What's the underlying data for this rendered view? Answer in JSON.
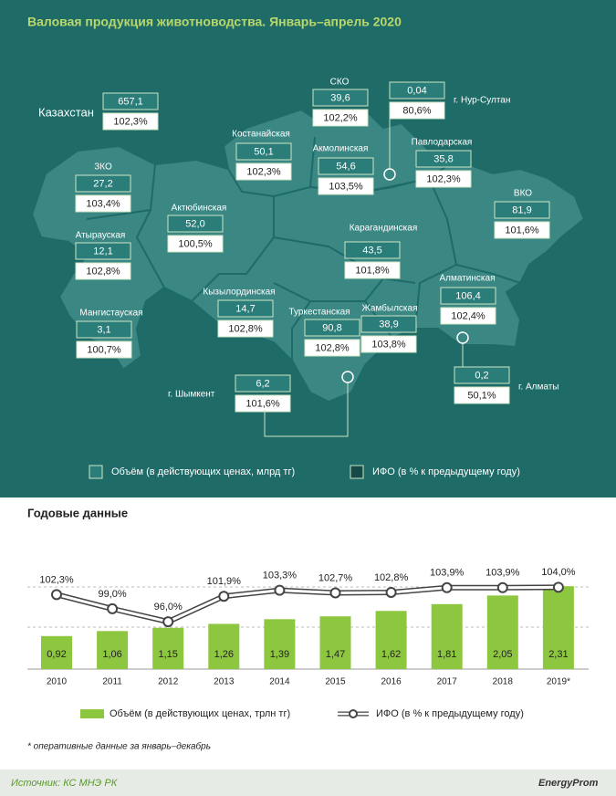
{
  "title": "Валовая продукция животноводства. Январь–апрель 2020",
  "map": {
    "regions": [
      {
        "name": "Казахстан",
        "volume": "657,1",
        "ifo": "102,3%"
      },
      {
        "name": "СКО",
        "volume": "39,6",
        "ifo": "102,2%"
      },
      {
        "name": "г. Нур-Султан",
        "volume": "0,04",
        "ifo": "80,6%"
      },
      {
        "name": "Костанайская",
        "volume": "50,1",
        "ifo": "102,3%"
      },
      {
        "name": "Акмолинская",
        "volume": "54,6",
        "ifo": "103,5%"
      },
      {
        "name": "Павлодарская",
        "volume": "35,8",
        "ifo": "102,3%"
      },
      {
        "name": "ЗКО",
        "volume": "27,2",
        "ifo": "103,4%"
      },
      {
        "name": "Актюбинская",
        "volume": "52,0",
        "ifo": "100,5%"
      },
      {
        "name": "ВКО",
        "volume": "81,9",
        "ifo": "101,6%"
      },
      {
        "name": "Атырауская",
        "volume": "12,1",
        "ifo": "102,8%"
      },
      {
        "name": "Карагандинская",
        "volume": "43,5",
        "ifo": "101,8%"
      },
      {
        "name": "Кызылординская",
        "volume": "14,7",
        "ifo": "102,8%"
      },
      {
        "name": "Алматинская",
        "volume": "106,4",
        "ifo": "102,4%"
      },
      {
        "name": "Мангистауская",
        "volume": "3,1",
        "ifo": "100,7%"
      },
      {
        "name": "Туркестанская",
        "volume": "90,8",
        "ifo": "102,8%"
      },
      {
        "name": "Жамбылская",
        "volume": "38,9",
        "ifo": "103,8%"
      },
      {
        "name": "г. Шымкент",
        "volume": "6,2",
        "ifo": "101,6%"
      },
      {
        "name": "г. Алматы",
        "volume": "0,2",
        "ifo": "50,1%"
      }
    ],
    "legend": {
      "volume": "Объём (в действующих ценах, млрд тг)",
      "ifo": "ИФО (в % к предыдущему году)"
    }
  },
  "chart_data": {
    "type": "bar_line",
    "title": "Годовые данные",
    "categories": [
      "2010",
      "2011",
      "2012",
      "2013",
      "2014",
      "2015",
      "2016",
      "2017",
      "2018",
      "2019*"
    ],
    "series": [
      {
        "name": "Объём (в действующих ценах, трлн тг)",
        "color": "#8dc63f",
        "values": [
          0.92,
          1.06,
          1.15,
          1.26,
          1.39,
          1.47,
          1.62,
          1.81,
          2.05,
          2.31
        ],
        "value_labels": [
          "0,92",
          "1,06",
          "1,15",
          "1,26",
          "1,39",
          "1,47",
          "1,62",
          "1,81",
          "2,05",
          "2,31"
        ]
      },
      {
        "name": "ИФО (в % к предыдущему году)",
        "color": "#ffffff",
        "axis": "y2",
        "values": [
          102.3,
          99.0,
          96.0,
          101.9,
          103.3,
          102.7,
          102.8,
          103.9,
          103.9,
          104.0
        ],
        "value_labels": [
          "102,3%",
          "99,0%",
          "96,0%",
          "101,9%",
          "103,3%",
          "102,7%",
          "102,8%",
          "103,9%",
          "103,9%",
          "104,0%"
        ]
      }
    ],
    "ylim": [
      0,
      3
    ],
    "y2lim": [
      85,
      110
    ]
  },
  "footnote": "* оперативные данные за январь–декабрь",
  "source": "Источник: КС МНЭ РК",
  "brand": "EnergyProm"
}
